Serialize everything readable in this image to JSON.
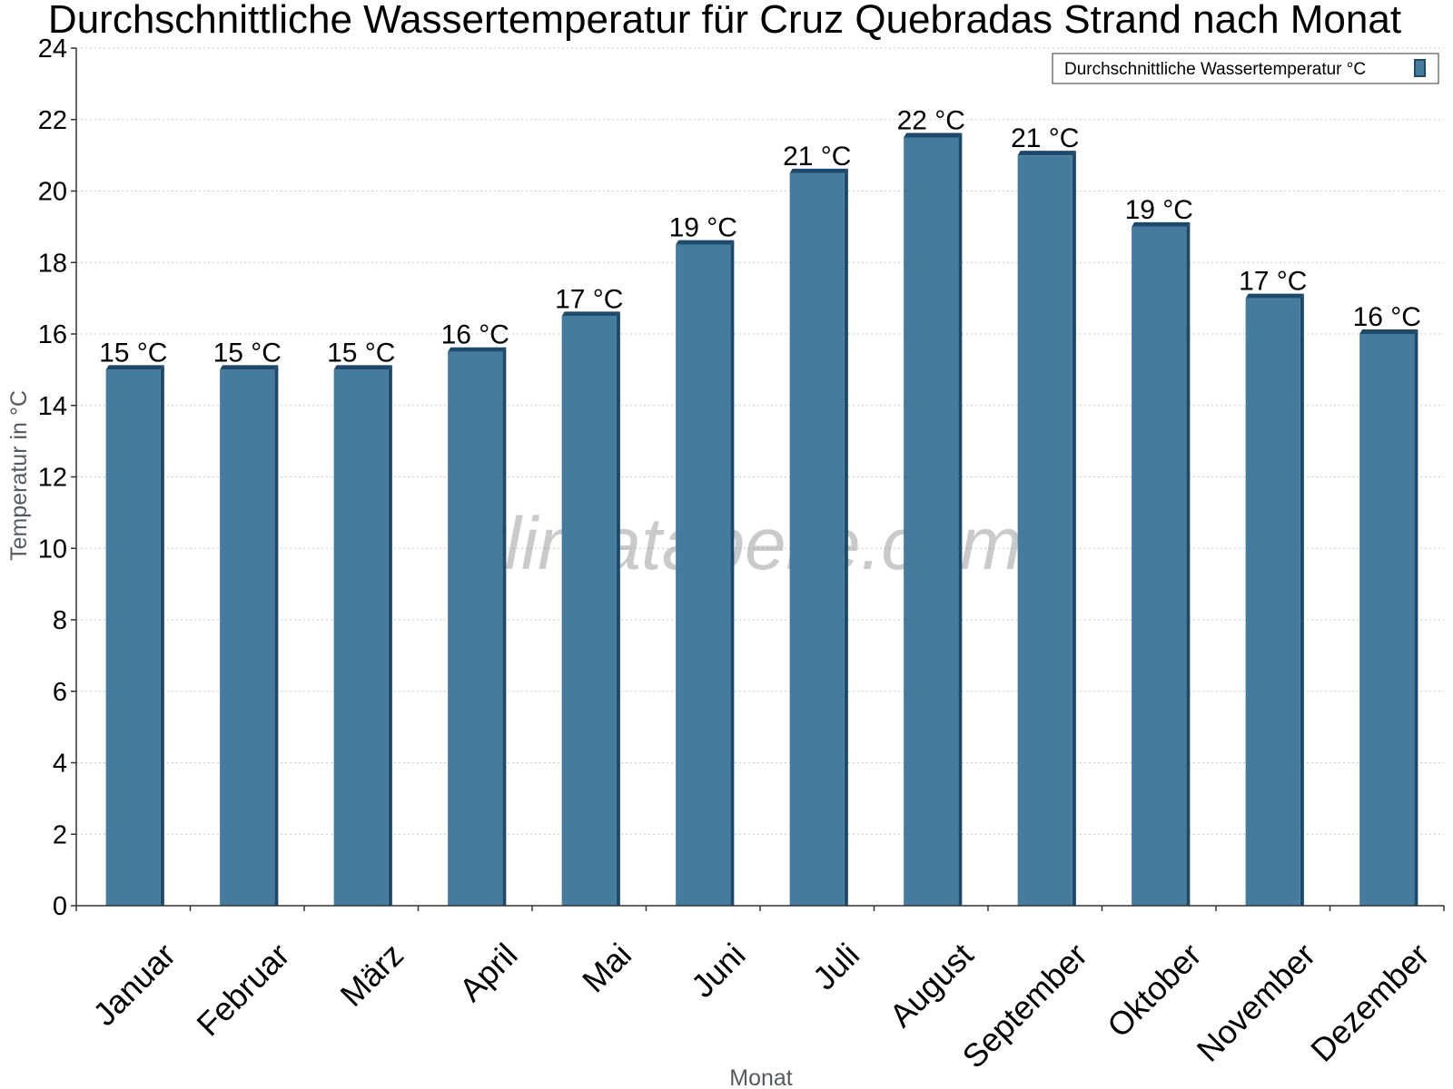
{
  "chart_data": {
    "type": "bar",
    "title": "Durchschnittliche Wassertemperatur für Cruz Quebradas Strand nach Monat",
    "xlabel": "Monat",
    "ylabel": "Temperatur in °C",
    "categories": [
      "Januar",
      "Februar",
      "März",
      "April",
      "Mai",
      "Juni",
      "Juli",
      "August",
      "September",
      "Oktober",
      "November",
      "Dezember"
    ],
    "series": [
      {
        "name": "Durchschnittliche Wassertemperatur °C",
        "values": [
          15,
          15,
          15,
          15.5,
          16.5,
          18.5,
          20.5,
          21.5,
          21,
          19,
          17,
          16
        ],
        "data_labels": [
          "15 °C",
          "15 °C",
          "15 °C",
          "16 °C",
          "17 °C",
          "19 °C",
          "21 °C",
          "22 °C",
          "21 °C",
          "19 °C",
          "17 °C",
          "16 °C"
        ]
      }
    ],
    "ylim": [
      0,
      24
    ],
    "yticks": [
      0,
      2,
      4,
      6,
      8,
      10,
      12,
      14,
      16,
      18,
      20,
      22,
      24
    ],
    "grid": true,
    "legend_position": "top-right",
    "watermark": "klimatabelle.com",
    "colors": {
      "bar": "#457b9d",
      "bar_edge": "#1d4a6b",
      "grid": "#c8c8c8",
      "axis": "#333333"
    }
  }
}
